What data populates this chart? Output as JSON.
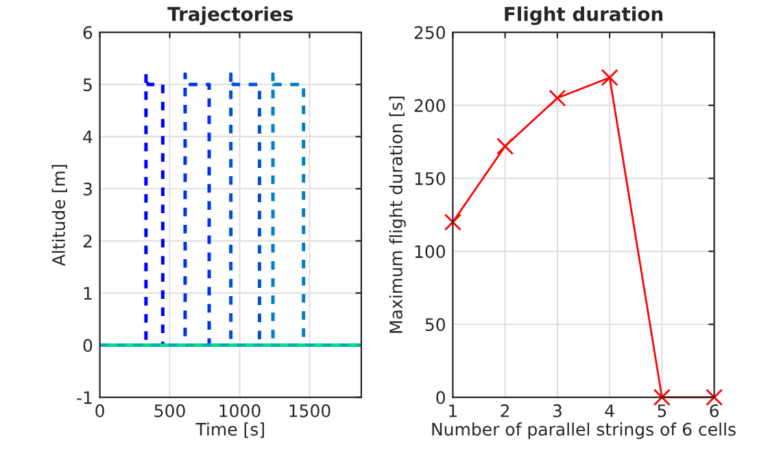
{
  "chart_data": [
    {
      "type": "line",
      "title": "Trajectories",
      "xlabel": "Time [s]",
      "ylabel": "Altitude [m]",
      "xlim": [
        0,
        1870
      ],
      "ylim": [
        -1,
        6
      ],
      "xticks": [
        0,
        500,
        1000,
        1500
      ],
      "yticks": [
        -1,
        0,
        1,
        2,
        3,
        4,
        5,
        6
      ],
      "grid": true,
      "line_style": "dashed",
      "marker": "none",
      "series": [
        {
          "color": "#0000ff",
          "x": [
            0,
            330,
            330,
            335,
            345,
            450,
            450,
            1870
          ],
          "values": [
            0,
            0,
            5.2,
            5.1,
            5,
            5,
            0,
            0
          ]
        },
        {
          "color": "#0033ee",
          "x": [
            0,
            610,
            610,
            615,
            630,
            782,
            782,
            1870
          ],
          "values": [
            0,
            0,
            5.2,
            5.05,
            5,
            5,
            0,
            0
          ]
        },
        {
          "color": "#0050d8",
          "x": [
            0,
            937,
            937,
            942,
            955,
            1142,
            1142,
            1870
          ],
          "values": [
            0,
            0,
            5.2,
            5.05,
            5,
            5,
            0,
            0
          ]
        },
        {
          "color": "#0080c0",
          "x": [
            0,
            1238,
            1238,
            1243,
            1260,
            1457,
            1457,
            1870
          ],
          "values": [
            0,
            0,
            5.2,
            5.0,
            5,
            5,
            0,
            0
          ]
        },
        {
          "color": "#00b0a8",
          "x": [
            0,
            1870
          ],
          "values": [
            0,
            0
          ]
        },
        {
          "color": "#00dd90",
          "x": [
            0,
            1870
          ],
          "values": [
            0,
            0
          ]
        }
      ]
    },
    {
      "type": "line",
      "title": "Flight duration",
      "xlabel": "Number of parallel strings of 6 cells",
      "ylabel": "Maximum flight duration [s]",
      "xlim": [
        1,
        6
      ],
      "ylim": [
        0,
        250
      ],
      "xticks": [
        1,
        2,
        3,
        4,
        5,
        6
      ],
      "yticks": [
        0,
        50,
        100,
        150,
        200,
        250
      ],
      "grid": true,
      "marker": "cross",
      "line_style": "solid",
      "series": [
        {
          "color": "#ff0000",
          "x": [
            1,
            2,
            3,
            4,
            5,
            6
          ],
          "values": [
            120,
            172,
            205,
            219,
            0,
            0
          ]
        }
      ]
    }
  ]
}
